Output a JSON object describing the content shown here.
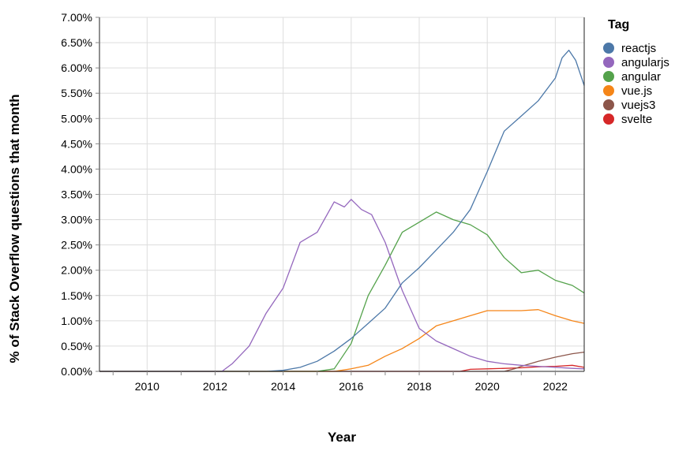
{
  "chart_data": {
    "type": "line",
    "xlabel": "Year",
    "ylabel": "% of Stack Overflow questions that month",
    "xlim": [
      2008.6,
      2022.85
    ],
    "ylim": [
      0,
      7
    ],
    "x_ticks": [
      2010,
      2012,
      2014,
      2016,
      2018,
      2020,
      2022
    ],
    "x_tick_labels": [
      "2010",
      "2012",
      "2014",
      "2016",
      "2018",
      "2020",
      "2022"
    ],
    "y_ticks": [
      0,
      0.5,
      1,
      1.5,
      2,
      2.5,
      3,
      3.5,
      4,
      4.5,
      5,
      5.5,
      6,
      6.5,
      7
    ],
    "y_tick_labels": [
      "0.00%",
      "0.50%",
      "1.00%",
      "1.50%",
      "2.00%",
      "2.50%",
      "3.00%",
      "3.50%",
      "4.00%",
      "4.50%",
      "5.00%",
      "5.50%",
      "6.00%",
      "6.50%",
      "7.00%"
    ],
    "grid": true,
    "legend": {
      "title": "Tag",
      "position": "right"
    },
    "series": [
      {
        "name": "reactjs",
        "color": "#4c78a8",
        "x": [
          2008.6,
          2013.0,
          2013.5,
          2014.0,
          2014.5,
          2015.0,
          2015.5,
          2016.0,
          2016.5,
          2017.0,
          2017.5,
          2018.0,
          2018.5,
          2019.0,
          2019.5,
          2020.0,
          2020.5,
          2021.0,
          2021.5,
          2022.0,
          2022.2,
          2022.4,
          2022.6,
          2022.85
        ],
        "values": [
          0,
          0,
          0,
          0.02,
          0.08,
          0.2,
          0.4,
          0.65,
          0.95,
          1.25,
          1.75,
          2.05,
          2.4,
          2.75,
          3.2,
          3.95,
          4.75,
          5.05,
          5.35,
          5.8,
          6.2,
          6.35,
          6.15,
          5.65
        ]
      },
      {
        "name": "angularjs",
        "color": "#9467bd",
        "x": [
          2008.6,
          2012.2,
          2012.5,
          2013.0,
          2013.5,
          2014.0,
          2014.5,
          2015.0,
          2015.5,
          2015.8,
          2016.0,
          2016.3,
          2016.6,
          2017.0,
          2017.5,
          2018.0,
          2018.5,
          2019.0,
          2019.5,
          2020.0,
          2020.5,
          2021.0,
          2021.5,
          2022.0,
          2022.5,
          2022.85
        ],
        "values": [
          0,
          0,
          0.15,
          0.5,
          1.15,
          1.65,
          2.55,
          2.75,
          3.35,
          3.25,
          3.4,
          3.2,
          3.1,
          2.55,
          1.6,
          0.85,
          0.6,
          0.45,
          0.3,
          0.2,
          0.15,
          0.12,
          0.1,
          0.08,
          0.06,
          0.05
        ]
      },
      {
        "name": "angular",
        "color": "#54a24b",
        "x": [
          2008.6,
          2015.0,
          2015.5,
          2016.0,
          2016.5,
          2017.0,
          2017.5,
          2018.0,
          2018.5,
          2019.0,
          2019.5,
          2020.0,
          2020.5,
          2021.0,
          2021.5,
          2022.0,
          2022.5,
          2022.85
        ],
        "values": [
          0,
          0,
          0.05,
          0.55,
          1.5,
          2.1,
          2.75,
          2.95,
          3.15,
          3.0,
          2.9,
          2.7,
          2.25,
          1.95,
          2.0,
          1.8,
          1.7,
          1.55
        ]
      },
      {
        "name": "vue.js",
        "color": "#f58518",
        "x": [
          2008.6,
          2015.5,
          2016.0,
          2016.5,
          2017.0,
          2017.5,
          2018.0,
          2018.5,
          2019.0,
          2019.5,
          2020.0,
          2020.5,
          2021.0,
          2021.5,
          2022.0,
          2022.5,
          2022.85
        ],
        "values": [
          0,
          0,
          0.05,
          0.12,
          0.3,
          0.45,
          0.65,
          0.9,
          1.0,
          1.1,
          1.2,
          1.2,
          1.2,
          1.22,
          1.1,
          1.0,
          0.95
        ]
      },
      {
        "name": "vuejs3",
        "color": "#8c564b",
        "x": [
          2008.6,
          2020.5,
          2020.8,
          2021.0,
          2021.5,
          2022.0,
          2022.5,
          2022.85
        ],
        "values": [
          0,
          0,
          0.05,
          0.1,
          0.2,
          0.28,
          0.35,
          0.38
        ]
      },
      {
        "name": "svelte",
        "color": "#d62728",
        "x": [
          2008.6,
          2019.2,
          2019.5,
          2020.0,
          2020.5,
          2021.0,
          2021.5,
          2022.0,
          2022.5,
          2022.85
        ],
        "values": [
          0,
          0,
          0.04,
          0.05,
          0.06,
          0.07,
          0.09,
          0.1,
          0.12,
          0.08
        ]
      }
    ]
  }
}
